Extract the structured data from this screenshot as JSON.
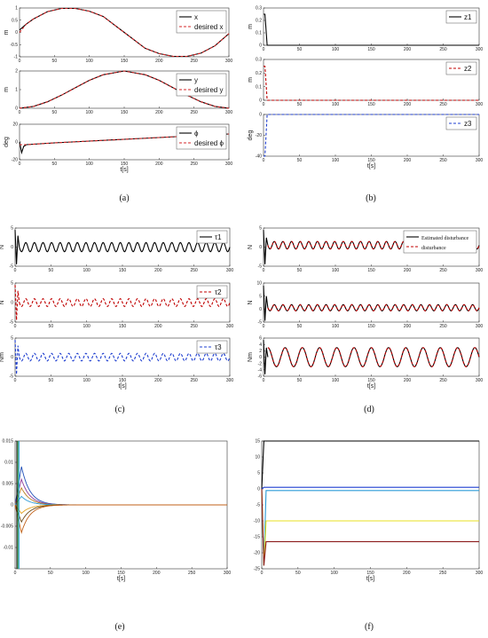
{
  "panels": [
    {
      "caption": "(a)"
    },
    {
      "caption": "(b)"
    },
    {
      "caption": "(c)"
    },
    {
      "caption": "(d)"
    },
    {
      "caption": "(e)"
    },
    {
      "caption": "(f)"
    }
  ],
  "colors": {
    "black": "#000000",
    "red": "#d62728",
    "blue": "#1f3fd0",
    "dashed_red": "#c00000",
    "teal": "#2a9bd8",
    "yellow": "#e8e020",
    "darkred": "#8b1a1a",
    "axis": "#333333"
  },
  "chart_data": [
    {
      "panel": "a",
      "subplot": 1,
      "type": "line",
      "ylabel": "m",
      "xlim": [
        0,
        300
      ],
      "ylim": [
        -1,
        1
      ],
      "xticks": [
        "0",
        "50",
        "100",
        "150",
        "200",
        "250",
        "300"
      ],
      "yticks": [
        "-1",
        "-0.5",
        "0",
        "0.5",
        "1"
      ],
      "series": [
        {
          "name": "x",
          "x": [
            0,
            10,
            20,
            40,
            60,
            80,
            100,
            120,
            150,
            180,
            200,
            220,
            240,
            260,
            280,
            300
          ],
          "y": [
            0.1,
            0.35,
            0.55,
            0.85,
            0.98,
            0.98,
            0.87,
            0.65,
            0.0,
            -0.65,
            -0.87,
            -0.98,
            -0.98,
            -0.85,
            -0.55,
            -0.05
          ]
        },
        {
          "name": "desired x",
          "x": [
            0,
            10,
            20,
            40,
            60,
            80,
            100,
            120,
            150,
            180,
            200,
            220,
            240,
            260,
            280,
            300
          ],
          "y": [
            0.0,
            0.35,
            0.55,
            0.85,
            0.98,
            0.98,
            0.87,
            0.65,
            0.0,
            -0.65,
            -0.87,
            -0.98,
            -0.98,
            -0.85,
            -0.55,
            -0.05
          ]
        }
      ]
    },
    {
      "panel": "a",
      "subplot": 2,
      "type": "line",
      "ylabel": "m",
      "xlim": [
        0,
        300
      ],
      "ylim": [
        0,
        2
      ],
      "xticks": [
        "0",
        "50",
        "100",
        "150",
        "200",
        "250",
        "300"
      ],
      "yticks": [
        "0",
        "1",
        "2"
      ],
      "series": [
        {
          "name": "y",
          "x": [
            0,
            20,
            40,
            60,
            80,
            100,
            120,
            150,
            180,
            200,
            220,
            240,
            260,
            280,
            300
          ],
          "y": [
            0.0,
            0.1,
            0.35,
            0.7,
            1.1,
            1.5,
            1.8,
            2.0,
            1.8,
            1.5,
            1.1,
            0.7,
            0.35,
            0.1,
            0.0
          ]
        },
        {
          "name": "desired y",
          "x": [
            0,
            20,
            40,
            60,
            80,
            100,
            120,
            150,
            180,
            200,
            220,
            240,
            260,
            280,
            300
          ],
          "y": [
            0.0,
            0.1,
            0.35,
            0.7,
            1.1,
            1.5,
            1.8,
            2.0,
            1.8,
            1.5,
            1.1,
            0.7,
            0.35,
            0.1,
            0.0
          ]
        }
      ]
    },
    {
      "panel": "a",
      "subplot": 3,
      "type": "line",
      "ylabel": "deg",
      "xlabel": "t[s]",
      "xlim": [
        0,
        300
      ],
      "ylim": [
        -20,
        20
      ],
      "xticks": [
        "0",
        "50",
        "100",
        "150",
        "200",
        "250",
        "300"
      ],
      "yticks": [
        "-20",
        "0",
        "20"
      ],
      "series": [
        {
          "name": "ϕ",
          "x": [
            0,
            3,
            6,
            10,
            50,
            100,
            150,
            200,
            250,
            300
          ],
          "y": [
            0,
            -12,
            -5,
            -3,
            -1,
            1,
            3,
            5,
            7,
            9
          ]
        },
        {
          "name": "desired ϕ",
          "x": [
            0,
            10,
            50,
            100,
            150,
            200,
            250,
            300
          ],
          "y": [
            -3,
            -3,
            -1,
            1,
            3,
            5,
            7,
            9
          ]
        }
      ]
    },
    {
      "panel": "b",
      "subplot": 1,
      "type": "line",
      "ylabel": "m",
      "xlim": [
        0,
        300
      ],
      "ylim": [
        0,
        0.3
      ],
      "xticks": [
        "0",
        "50",
        "100",
        "150",
        "200",
        "250",
        "300"
      ],
      "yticks": [
        "0",
        "0.1",
        "0.2",
        "0.3"
      ],
      "series": [
        {
          "name": "z1",
          "x": [
            0,
            2,
            5,
            10,
            300
          ],
          "y": [
            0.25,
            0.25,
            0.0,
            0.0,
            0.0
          ]
        }
      ]
    },
    {
      "panel": "b",
      "subplot": 2,
      "type": "line",
      "ylabel": "m",
      "xlim": [
        0,
        300
      ],
      "ylim": [
        0,
        0.3
      ],
      "xticks": [
        "0",
        "50",
        "100",
        "150",
        "200",
        "250",
        "300"
      ],
      "yticks": [
        "0",
        "0.1",
        "0.2",
        "0.3"
      ],
      "series": [
        {
          "name": "z2",
          "x": [
            0,
            2,
            5,
            10,
            300
          ],
          "y": [
            0.25,
            0.25,
            0.0,
            0.0,
            0.0
          ]
        }
      ]
    },
    {
      "panel": "b",
      "subplot": 3,
      "type": "line",
      "ylabel": "deg",
      "xlabel": "t[s]",
      "xlim": [
        0,
        300
      ],
      "ylim": [
        -40,
        0
      ],
      "xticks": [
        "0",
        "50",
        "100",
        "150",
        "200",
        "250",
        "300"
      ],
      "yticks": [
        "-40",
        "-20",
        "0"
      ],
      "series": [
        {
          "name": "z3",
          "x": [
            0,
            2,
            5,
            10,
            300
          ],
          "y": [
            -40,
            -40,
            0,
            0,
            0
          ]
        }
      ]
    },
    {
      "panel": "c",
      "subplot": 1,
      "type": "line",
      "ylabel": "N",
      "xlim": [
        0,
        300
      ],
      "ylim": [
        -5,
        5
      ],
      "xticks": [
        "0",
        "50",
        "100",
        "150",
        "200",
        "250",
        "300"
      ],
      "yticks": [
        "-5",
        "0",
        "5"
      ],
      "series": [
        {
          "name": "τ1",
          "base": 0.0,
          "amplitude": 1.2,
          "period": 12
        }
      ]
    },
    {
      "panel": "c",
      "subplot": 2,
      "type": "line",
      "ylabel": "N",
      "xlim": [
        0,
        300
      ],
      "ylim": [
        -5,
        5
      ],
      "xticks": [
        "0",
        "50",
        "100",
        "150",
        "200",
        "250",
        "300"
      ],
      "yticks": [
        "-5",
        "0",
        "5"
      ],
      "series": [
        {
          "name": "τ2",
          "base": 0.0,
          "amplitude": 1.0,
          "period": 12
        }
      ]
    },
    {
      "panel": "c",
      "subplot": 3,
      "type": "line",
      "ylabel": "Nm",
      "xlabel": "t[s]",
      "xlim": [
        0,
        300
      ],
      "ylim": [
        -5,
        5
      ],
      "xticks": [
        "0",
        "50",
        "100",
        "150",
        "200",
        "250",
        "300"
      ],
      "yticks": [
        "-5",
        "0",
        "5"
      ],
      "series": [
        {
          "name": "τ3",
          "base": 0.0,
          "amplitude": 1.0,
          "period": 12
        }
      ]
    },
    {
      "panel": "d",
      "subplot": 1,
      "type": "line",
      "ylabel": "N",
      "xlim": [
        0,
        300
      ],
      "ylim": [
        -5,
        5
      ],
      "xticks": [
        "0",
        "50",
        "100",
        "150",
        "200",
        "250",
        "300"
      ],
      "yticks": [
        "-5",
        "0",
        "5"
      ],
      "series": [
        {
          "name": "Estimated disturbance",
          "base": 0.5,
          "amplitude": 1.0,
          "period": 12
        },
        {
          "name": "disturbance",
          "base": 0.5,
          "amplitude": 1.0,
          "period": 12
        }
      ]
    },
    {
      "panel": "d",
      "subplot": 2,
      "type": "line",
      "ylabel": "N",
      "xlim": [
        0,
        300
      ],
      "ylim": [
        -5,
        10
      ],
      "xticks": [
        "0",
        "50",
        "100",
        "150",
        "200",
        "250",
        "300"
      ],
      "yticks": [
        "-5",
        "0",
        "5",
        "10"
      ],
      "series": [
        {
          "name": "Estimated disturbance",
          "base": 0.5,
          "amplitude": 1.2,
          "period": 12
        },
        {
          "name": "disturbance",
          "base": 0.5,
          "amplitude": 1.2,
          "period": 12
        }
      ]
    },
    {
      "panel": "d",
      "subplot": 3,
      "type": "line",
      "ylabel": "Nm",
      "xlabel": "t[s]",
      "xlim": [
        0,
        300
      ],
      "ylim": [
        -6,
        6
      ],
      "xticks": [
        "0",
        "50",
        "100",
        "150",
        "200",
        "250",
        "300"
      ],
      "yticks": [
        "-6",
        "-4",
        "-2",
        "0",
        "2",
        "4",
        "6"
      ],
      "series": [
        {
          "name": "Estimated disturbance",
          "base": 0.0,
          "amplitude": 3.0,
          "period": 24
        },
        {
          "name": "disturbance",
          "base": 0.0,
          "amplitude": 3.0,
          "period": 24
        }
      ]
    },
    {
      "panel": "e",
      "type": "line",
      "xlabel": "t[s]",
      "xlim": [
        0,
        300
      ],
      "ylim": [
        -0.015,
        0.015
      ],
      "xticks": [
        "0",
        "50",
        "100",
        "150",
        "200",
        "250",
        "300"
      ],
      "yticks": [
        "-0.01",
        "-0.005",
        "0",
        "0.005",
        "0.01",
        "0.015"
      ],
      "series": [
        {
          "peak": 0.009,
          "color": "#1f4fb8"
        },
        {
          "peak": 0.006,
          "color": "#8b3a9b"
        },
        {
          "peak": 0.004,
          "color": "#b87f22"
        },
        {
          "peak": 0.002,
          "color": "#2a9bd8"
        },
        {
          "peak": -0.002,
          "color": "#e0a020"
        },
        {
          "peak": -0.004,
          "color": "#6a4a1a"
        },
        {
          "peak": -0.0065,
          "color": "#c06018"
        }
      ]
    },
    {
      "panel": "f",
      "type": "line",
      "xlabel": "t[s]",
      "xlim": [
        0,
        300
      ],
      "ylim": [
        -25,
        15
      ],
      "xticks": [
        "0",
        "50",
        "100",
        "150",
        "200",
        "250",
        "300"
      ],
      "yticks": [
        "-25",
        "-20",
        "-15",
        "-10",
        "-5",
        "0",
        "5",
        "10",
        "15"
      ],
      "series": [
        {
          "level": 15,
          "color": "#000000"
        },
        {
          "level": 0.5,
          "color": "#1f3fd0"
        },
        {
          "level": -0.5,
          "color": "#2a9bd8"
        },
        {
          "level": -10,
          "color": "#e8e020"
        },
        {
          "level": -16.5,
          "color": "#8b1a1a"
        }
      ]
    }
  ]
}
